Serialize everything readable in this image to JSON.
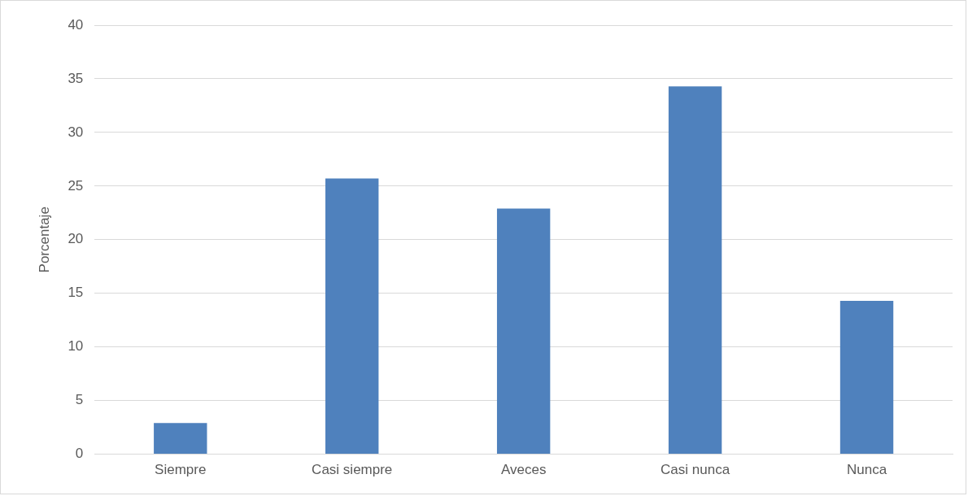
{
  "chart_data": {
    "type": "bar",
    "ylabel": "Porcentaje",
    "categories": [
      "Siempre",
      "Casi siempre",
      "Aveces",
      "Casi nunca",
      "Nunca"
    ],
    "values": [
      2.9,
      25.7,
      22.9,
      34.3,
      14.3
    ],
    "color": "#4f81bd",
    "ylim": [
      0,
      40
    ],
    "yticks": [
      0,
      5,
      10,
      15,
      20,
      25,
      30,
      35,
      40
    ],
    "grid": "y",
    "legend": false
  }
}
